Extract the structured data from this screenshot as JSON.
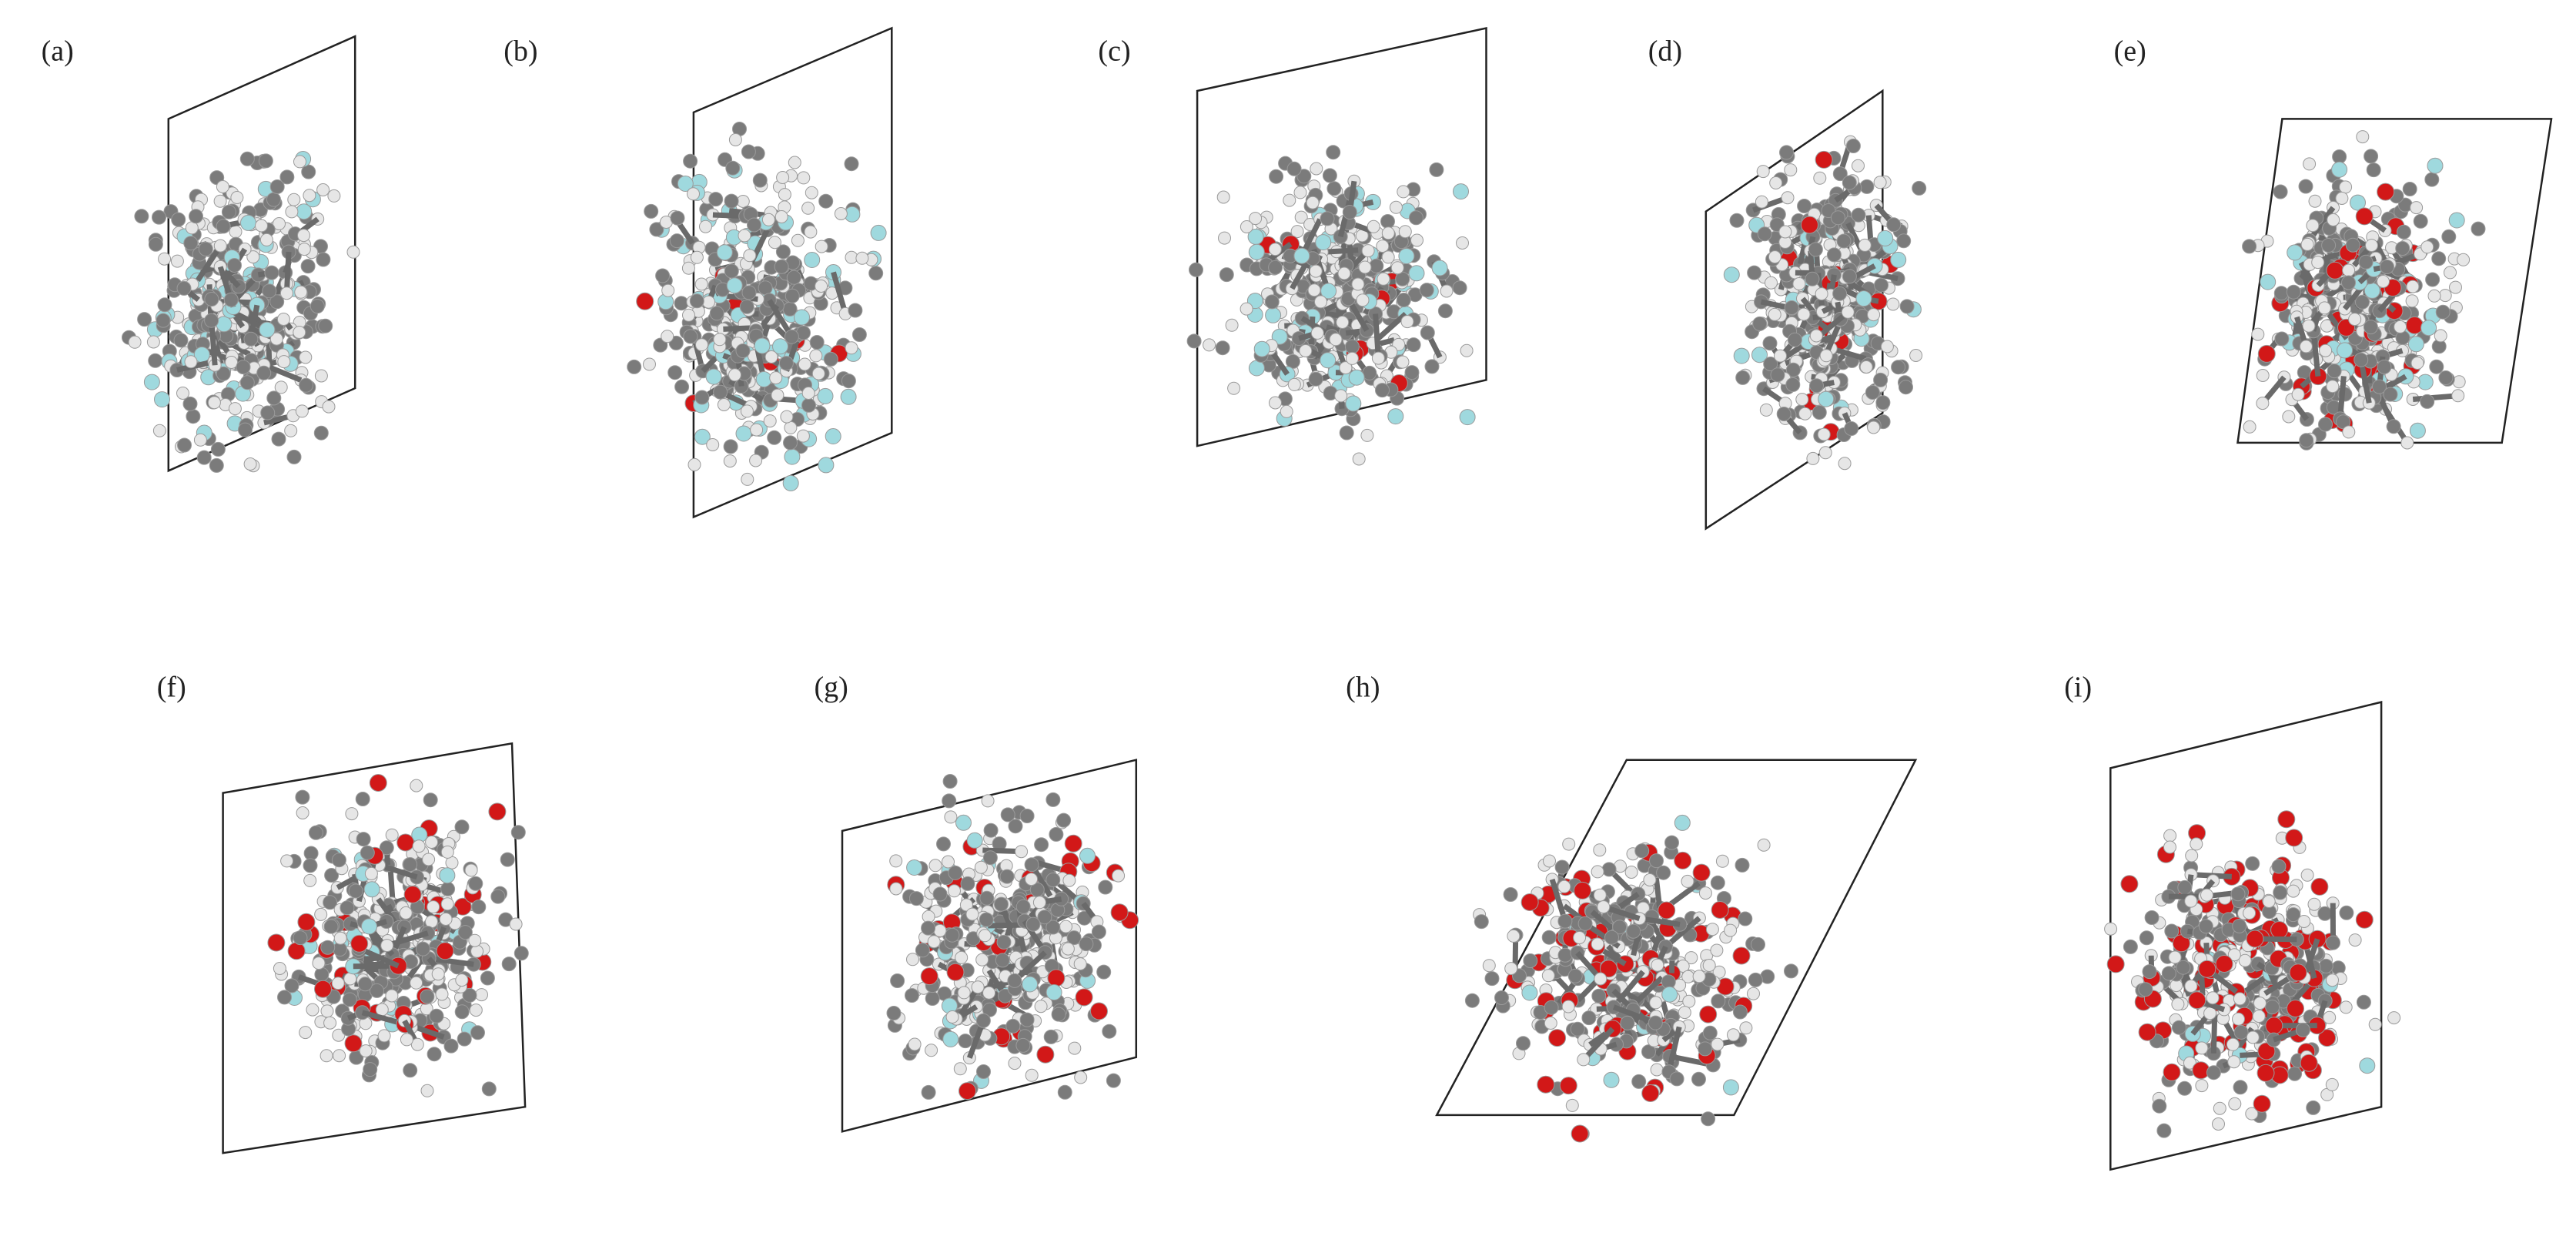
{
  "panels": [
    {
      "label": "(a)"
    },
    {
      "label": "(b)"
    },
    {
      "label": "(c)"
    },
    {
      "label": "(d)"
    },
    {
      "label": "(e)"
    },
    {
      "label": "(f)"
    },
    {
      "label": "(g)"
    },
    {
      "label": "(h)"
    },
    {
      "label": "(i)"
    }
  ]
}
